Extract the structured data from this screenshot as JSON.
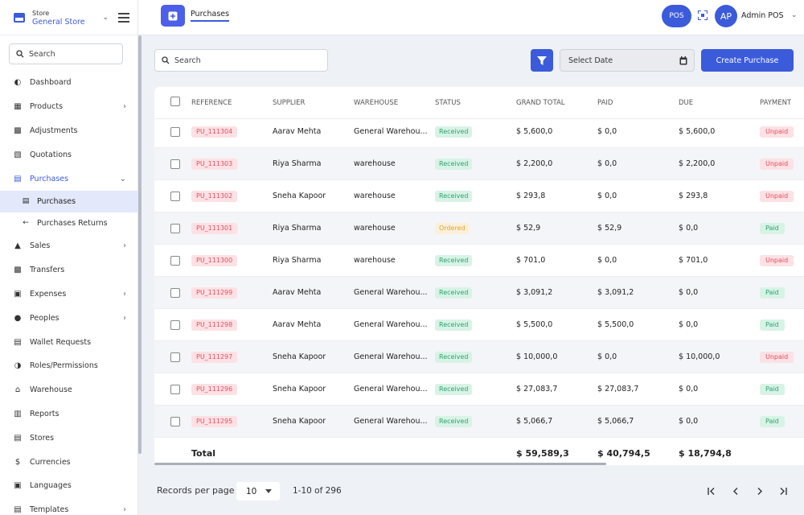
{
  "sidebar": {
    "store_small": "Store",
    "store_name": "General Store",
    "search_placeholder": "Search",
    "items": [
      {
        "label": "Dashboard"
      },
      {
        "label": "Products"
      },
      {
        "label": "Adjustments"
      },
      {
        "label": "Quotations"
      },
      {
        "label": "Purchases"
      },
      {
        "label": "Purchases"
      },
      {
        "label": "Purchases Returns"
      },
      {
        "label": "Sales"
      },
      {
        "label": "Transfers"
      },
      {
        "label": "Expenses"
      },
      {
        "label": "Peoples"
      },
      {
        "label": "Wallet Requests"
      },
      {
        "label": "Roles/Permissions"
      },
      {
        "label": "Warehouse"
      },
      {
        "label": "Reports"
      },
      {
        "label": "Stores"
      },
      {
        "label": "Currencies"
      },
      {
        "label": "Languages"
      },
      {
        "label": "Templates"
      }
    ]
  },
  "topbar": {
    "title": "Purchases",
    "pos_label": "POS",
    "avatar_initials": "AP",
    "user_name": "Admin POS"
  },
  "toolbar": {
    "search_placeholder": "Search",
    "date_placeholder": "Select Date",
    "create_label": "Create Purchase"
  },
  "table": {
    "headers": [
      "REFERENCE",
      "SUPPLIER",
      "WAREHOUSE",
      "STATUS",
      "GRAND TOTAL",
      "PAID",
      "DUE",
      "PAYMENT"
    ],
    "rows": [
      {
        "ref": "PU_111304",
        "supplier": "Aarav Mehta",
        "warehouse": "General Warehou...",
        "status": "Received",
        "grand_total": "$ 5,600,0",
        "paid": "$ 0,0",
        "due": "$ 5,600,0",
        "payment": "Unpaid"
      },
      {
        "ref": "PU_111303",
        "supplier": "Riya Sharma",
        "warehouse": "warehouse",
        "status": "Received",
        "grand_total": "$ 2,200,0",
        "paid": "$ 0,0",
        "due": "$ 2,200,0",
        "payment": "Unpaid"
      },
      {
        "ref": "PU_111302",
        "supplier": "Sneha Kapoor",
        "warehouse": "warehouse",
        "status": "Received",
        "grand_total": "$ 293,8",
        "paid": "$ 0,0",
        "due": "$ 293,8",
        "payment": "Unpaid"
      },
      {
        "ref": "PU_111301",
        "supplier": "Riya Sharma",
        "warehouse": "warehouse",
        "status": "Ordered",
        "grand_total": "$ 52,9",
        "paid": "$ 52,9",
        "due": "$ 0,0",
        "payment": "Paid"
      },
      {
        "ref": "PU_111300",
        "supplier": "Riya Sharma",
        "warehouse": "warehouse",
        "status": "Received",
        "grand_total": "$ 701,0",
        "paid": "$ 0,0",
        "due": "$ 701,0",
        "payment": "Unpaid"
      },
      {
        "ref": "PU_111299",
        "supplier": "Aarav Mehta",
        "warehouse": "General Warehou...",
        "status": "Received",
        "grand_total": "$ 3,091,2",
        "paid": "$ 3,091,2",
        "due": "$ 0,0",
        "payment": "Paid"
      },
      {
        "ref": "PU_111298",
        "supplier": "Aarav Mehta",
        "warehouse": "General Warehou...",
        "status": "Received",
        "grand_total": "$ 5,500,0",
        "paid": "$ 5,500,0",
        "due": "$ 0,0",
        "payment": "Paid"
      },
      {
        "ref": "PU_111297",
        "supplier": "Sneha Kapoor",
        "warehouse": "General Warehou...",
        "status": "Received",
        "grand_total": "$ 10,000,0",
        "paid": "$ 0,0",
        "due": "$ 10,000,0",
        "payment": "Unpaid"
      },
      {
        "ref": "PU_111296",
        "supplier": "Sneha Kapoor",
        "warehouse": "General Warehou...",
        "status": "Received",
        "grand_total": "$ 27,083,7",
        "paid": "$ 27,083,7",
        "due": "$ 0,0",
        "payment": "Paid"
      },
      {
        "ref": "PU_111295",
        "supplier": "Sneha Kapoor",
        "warehouse": "General Warehou...",
        "status": "Received",
        "grand_total": "$ 5,066,7",
        "paid": "$ 5,066,7",
        "due": "$ 0,0",
        "payment": "Paid"
      }
    ],
    "total": {
      "label": "Total",
      "grand_total": "$ 59,589,3",
      "paid": "$ 40,794,5",
      "due": "$ 18,794,8"
    }
  },
  "footer": {
    "rpp_label": "Records per page",
    "rpp_value": "10",
    "range": "1-10 of 296"
  },
  "colors": {
    "accent": "#3b5bdb",
    "received": "#2aa46c",
    "unpaid": "#e84c5e",
    "ordered": "#e0a33a"
  }
}
